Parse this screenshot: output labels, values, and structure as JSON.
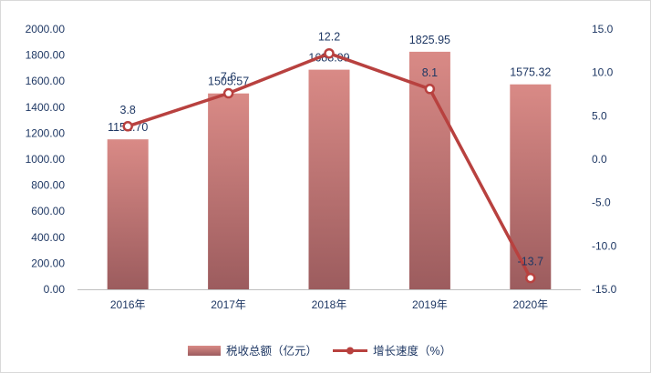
{
  "chart_data": {
    "type": "bar",
    "categories": [
      "2016年",
      "2017年",
      "2018年",
      "2019年",
      "2020年"
    ],
    "series": [
      {
        "name": "税收总额（亿元）",
        "type": "bar",
        "axis": "left",
        "values": [
          1152.7,
          1505.57,
          1688.09,
          1825.95,
          1575.32
        ],
        "labels": [
          "1152.70",
          "1505.57",
          "1688.09",
          "1825.95",
          "1575.32"
        ],
        "color": "#c97a78"
      },
      {
        "name": "增长速度（%）",
        "type": "line",
        "axis": "right",
        "values": [
          3.8,
          7.6,
          12.2,
          8.1,
          -13.7
        ],
        "labels": [
          "3.8",
          "7.6",
          "12.2",
          "8.1",
          "-13.7"
        ],
        "color": "#b8413f"
      }
    ],
    "y_left": {
      "range": [
        0,
        2000
      ],
      "ticks": [
        "0.00",
        "200.00",
        "400.00",
        "600.00",
        "800.00",
        "1000.00",
        "1200.00",
        "1400.00",
        "1600.00",
        "1800.00",
        "2000.00"
      ]
    },
    "y_right": {
      "range": [
        -15,
        15
      ],
      "ticks": [
        "-15.0",
        "-10.0",
        "-5.0",
        "0.0",
        "5.0",
        "10.0",
        "15.0"
      ]
    },
    "grid": false,
    "legend": "bottom"
  }
}
